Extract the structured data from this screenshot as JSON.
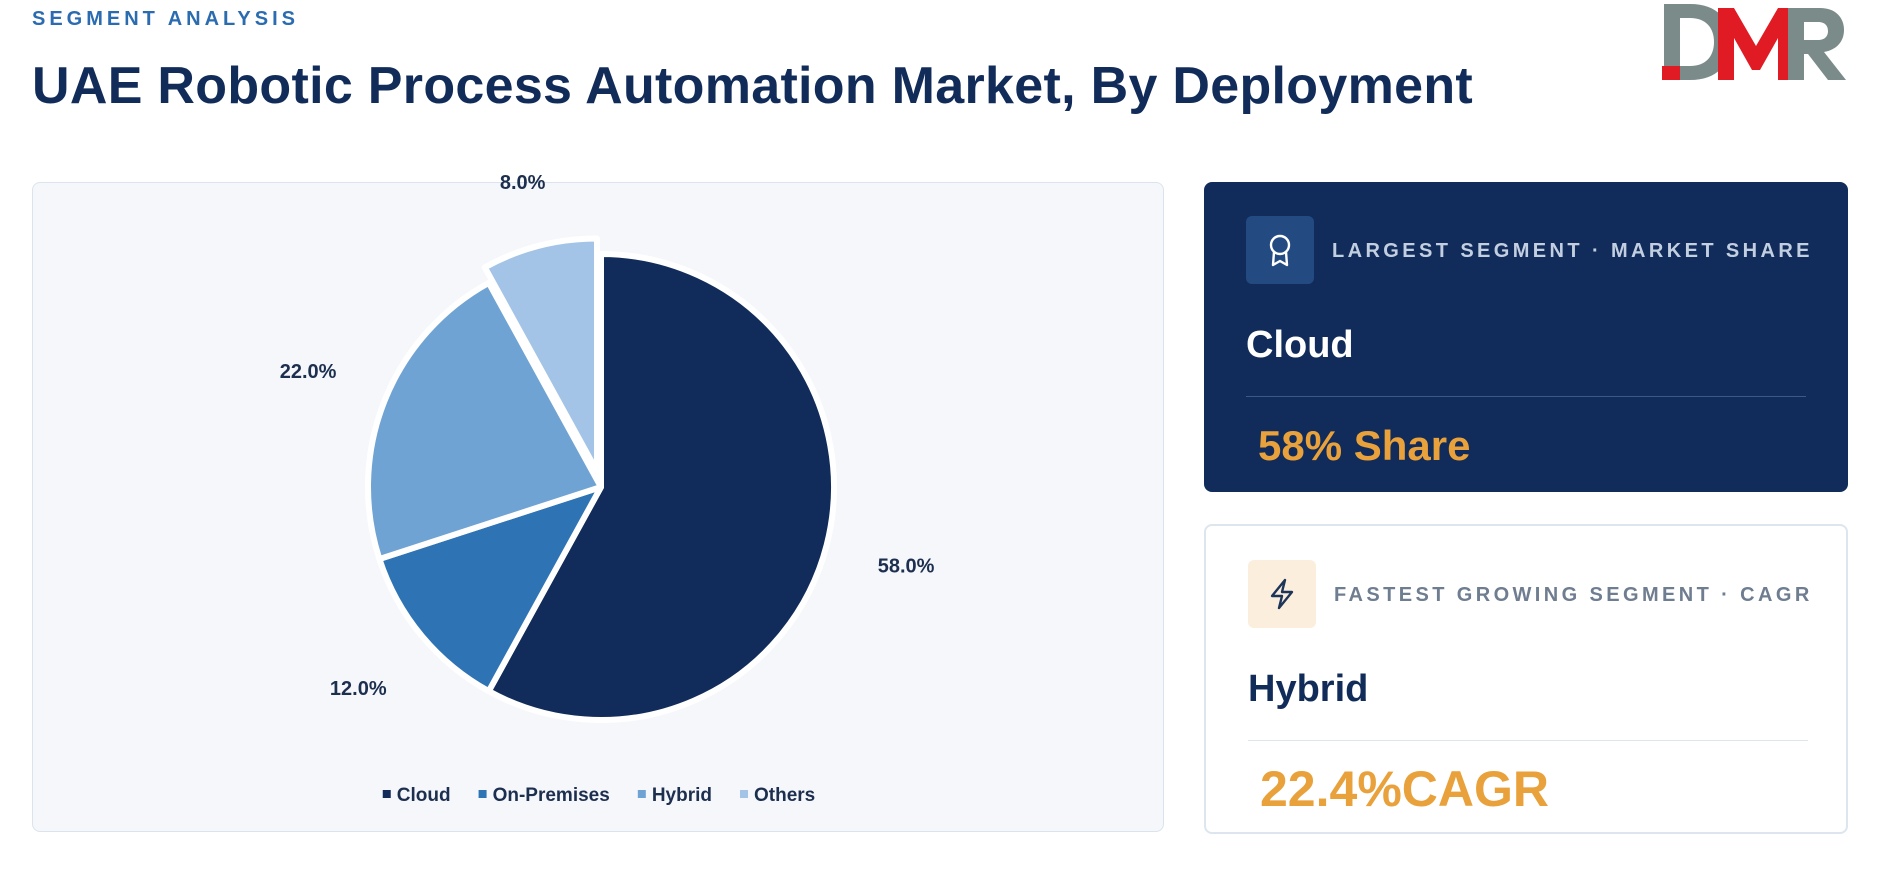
{
  "header": {
    "eyebrow": "SEGMENT ANALYSIS",
    "title": "UAE Robotic Process Automation Market, By Deployment"
  },
  "logo": {
    "text": "DMR",
    "colors": {
      "d": "#7b8b8a",
      "m": "#e01b24",
      "r": "#7b8b8a"
    }
  },
  "chart_data": {
    "type": "pie",
    "title": "",
    "categories": [
      "Cloud",
      "On-Premises",
      "Hybrid",
      "Others"
    ],
    "values": [
      58.0,
      12.0,
      22.0,
      8.0
    ],
    "data_labels": [
      "58.0%",
      "12.0%",
      "22.0%",
      "8.0%"
    ],
    "colors": [
      "#112c5a",
      "#2e74b5",
      "#6fa3d3",
      "#a3c4e6"
    ],
    "exploded": [
      "Others"
    ],
    "legend_position": "bottom"
  },
  "cards": {
    "largest": {
      "icon": "award-icon",
      "label": "LARGEST SEGMENT · MARKET SHARE",
      "segment": "Cloud",
      "metric": "58% Share"
    },
    "fastest": {
      "icon": "lightning-icon",
      "label": "FASTEST GROWING SEGMENT · CAGR",
      "segment": "Hybrid",
      "metric": "22.4%CAGR"
    }
  },
  "theme": {
    "accent": "#e9a13b",
    "navy": "#112c5a",
    "brand_blue": "#2b6cb0"
  }
}
